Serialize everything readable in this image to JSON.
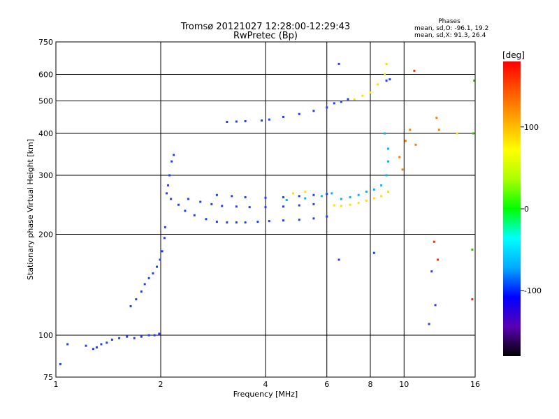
{
  "chart_data": {
    "type": "scatter",
    "title": "Tromsø 20121027 12:28:00-12:29:43",
    "subtitle": "RwPretec (Bp)",
    "xlabel": "Frequency [MHz]",
    "ylabel": "Stationary phase Virtual Height [km]",
    "x_scale": "log",
    "y_scale": "log",
    "xlim": [
      1,
      16
    ],
    "ylim": [
      75,
      750
    ],
    "x_ticks": [
      1,
      2,
      4,
      6,
      8,
      10,
      16
    ],
    "x_tick_labels": [
      "1",
      "2",
      "4",
      "6",
      "8",
      "10",
      "16"
    ],
    "y_ticks": [
      75,
      100,
      200,
      300,
      400,
      500,
      600,
      750
    ],
    "y_tick_labels": [
      "75",
      "100",
      "200",
      "300",
      "400",
      "500",
      "600",
      "750"
    ],
    "grid": true,
    "phase_info": {
      "heading": "Phases",
      "line1": "mean, sd,O: -96.1, 19.2",
      "line2": "mean, sd,X:  91.3, 26.4"
    },
    "colorbar": {
      "label": "[deg]",
      "ticks": [
        100,
        0,
        -100
      ],
      "tick_labels": [
        "100",
        "0",
        "-100"
      ],
      "range": [
        -180,
        180
      ],
      "colors": [
        "#000000",
        "#5a00b4",
        "#0000ff",
        "#00aaff",
        "#00ffff",
        "#00ff00",
        "#aaff00",
        "#ffff00",
        "#ffaa00",
        "#ff5500",
        "#ff0000"
      ]
    },
    "series": [
      {
        "color": "#1f3fff",
        "points": [
          [
            1.03,
            82
          ],
          [
            1.08,
            94
          ],
          [
            1.22,
            93
          ],
          [
            1.28,
            91
          ],
          [
            1.31,
            92
          ],
          [
            1.35,
            94
          ],
          [
            1.4,
            95
          ],
          [
            1.45,
            97
          ],
          [
            1.52,
            98
          ],
          [
            1.6,
            99
          ],
          [
            1.68,
            98
          ],
          [
            1.76,
            99
          ],
          [
            1.85,
            100
          ],
          [
            1.92,
            100
          ],
          [
            1.98,
            101
          ],
          [
            1.64,
            122
          ],
          [
            1.7,
            128
          ],
          [
            1.76,
            135
          ],
          [
            1.8,
            142
          ],
          [
            1.85,
            148
          ],
          [
            1.9,
            153
          ],
          [
            1.95,
            160
          ],
          [
            1.99,
            168
          ],
          [
            2.02,
            178
          ],
          [
            2.05,
            195
          ],
          [
            2.06,
            210
          ],
          [
            2.08,
            265
          ],
          [
            2.1,
            280
          ],
          [
            2.12,
            300
          ],
          [
            2.15,
            330
          ],
          [
            2.18,
            345
          ],
          [
            2.14,
            255
          ],
          [
            2.25,
            245
          ],
          [
            2.35,
            235
          ],
          [
            2.5,
            228
          ],
          [
            2.7,
            222
          ],
          [
            2.9,
            218
          ],
          [
            3.1,
            217
          ],
          [
            3.3,
            217
          ],
          [
            3.5,
            217
          ],
          [
            3.8,
            218
          ],
          [
            4.1,
            219
          ],
          [
            4.5,
            220
          ],
          [
            5.0,
            221
          ],
          [
            5.5,
            223
          ],
          [
            6.0,
            226
          ],
          [
            2.4,
            255
          ],
          [
            2.6,
            250
          ],
          [
            2.8,
            246
          ],
          [
            3.0,
            243
          ],
          [
            3.3,
            242
          ],
          [
            3.6,
            241
          ],
          [
            4.0,
            241
          ],
          [
            4.5,
            242
          ],
          [
            5.0,
            244
          ],
          [
            5.5,
            246
          ],
          [
            2.9,
            262
          ],
          [
            3.2,
            260
          ],
          [
            3.5,
            258
          ],
          [
            4.0,
            257
          ],
          [
            4.5,
            258
          ],
          [
            5.0,
            260
          ],
          [
            5.5,
            262
          ],
          [
            6.0,
            264
          ],
          [
            3.1,
            433
          ],
          [
            3.3,
            434
          ],
          [
            3.5,
            435
          ],
          [
            3.9,
            437
          ],
          [
            4.1,
            440
          ],
          [
            4.5,
            448
          ],
          [
            5.0,
            457
          ],
          [
            5.5,
            467
          ],
          [
            6.0,
            478
          ],
          [
            6.3,
            492
          ],
          [
            6.6,
            497
          ],
          [
            6.9,
            506
          ],
          [
            8.9,
            575
          ],
          [
            9.1,
            580
          ],
          [
            6.5,
            645
          ],
          [
            6.5,
            168
          ],
          [
            8.2,
            176
          ],
          [
            11.8,
            108
          ],
          [
            12.0,
            155
          ],
          [
            12.3,
            123
          ]
        ]
      },
      {
        "color": "#00b4ff",
        "points": [
          [
            4.6,
            253
          ],
          [
            5.2,
            256
          ],
          [
            5.8,
            260
          ],
          [
            6.2,
            265
          ],
          [
            6.6,
            255
          ],
          [
            7.0,
            258
          ],
          [
            7.4,
            262
          ],
          [
            7.8,
            268
          ],
          [
            8.2,
            272
          ],
          [
            8.6,
            280
          ],
          [
            8.9,
            300
          ],
          [
            9.0,
            330
          ],
          [
            9.0,
            360
          ],
          [
            8.8,
            400
          ]
        ]
      },
      {
        "color": "#ffe100",
        "points": [
          [
            4.8,
            265
          ],
          [
            5.2,
            268
          ],
          [
            6.3,
            244
          ],
          [
            6.6,
            243
          ],
          [
            7.0,
            245
          ],
          [
            7.4,
            248
          ],
          [
            7.8,
            252
          ],
          [
            8.2,
            256
          ],
          [
            8.6,
            260
          ],
          [
            9.0,
            268
          ],
          [
            7.2,
            505
          ],
          [
            7.6,
            518
          ],
          [
            8.0,
            530
          ],
          [
            8.4,
            560
          ],
          [
            8.8,
            600
          ],
          [
            8.9,
            645
          ],
          [
            14.2,
            400
          ]
        ]
      },
      {
        "color": "#ff7a00",
        "points": [
          [
            9.7,
            340
          ],
          [
            10.1,
            380
          ],
          [
            10.4,
            410
          ],
          [
            10.8,
            370
          ],
          [
            9.9,
            312
          ],
          [
            12.4,
            445
          ],
          [
            12.6,
            410
          ]
        ]
      },
      {
        "color": "#ff2a00",
        "points": [
          [
            10.7,
            615
          ],
          [
            12.2,
            190
          ],
          [
            12.5,
            168
          ],
          [
            15.7,
            128
          ]
        ]
      },
      {
        "color": "#32c800",
        "points": [
          [
            15.9,
            575
          ],
          [
            15.8,
            400
          ],
          [
            15.7,
            180
          ]
        ]
      }
    ]
  }
}
